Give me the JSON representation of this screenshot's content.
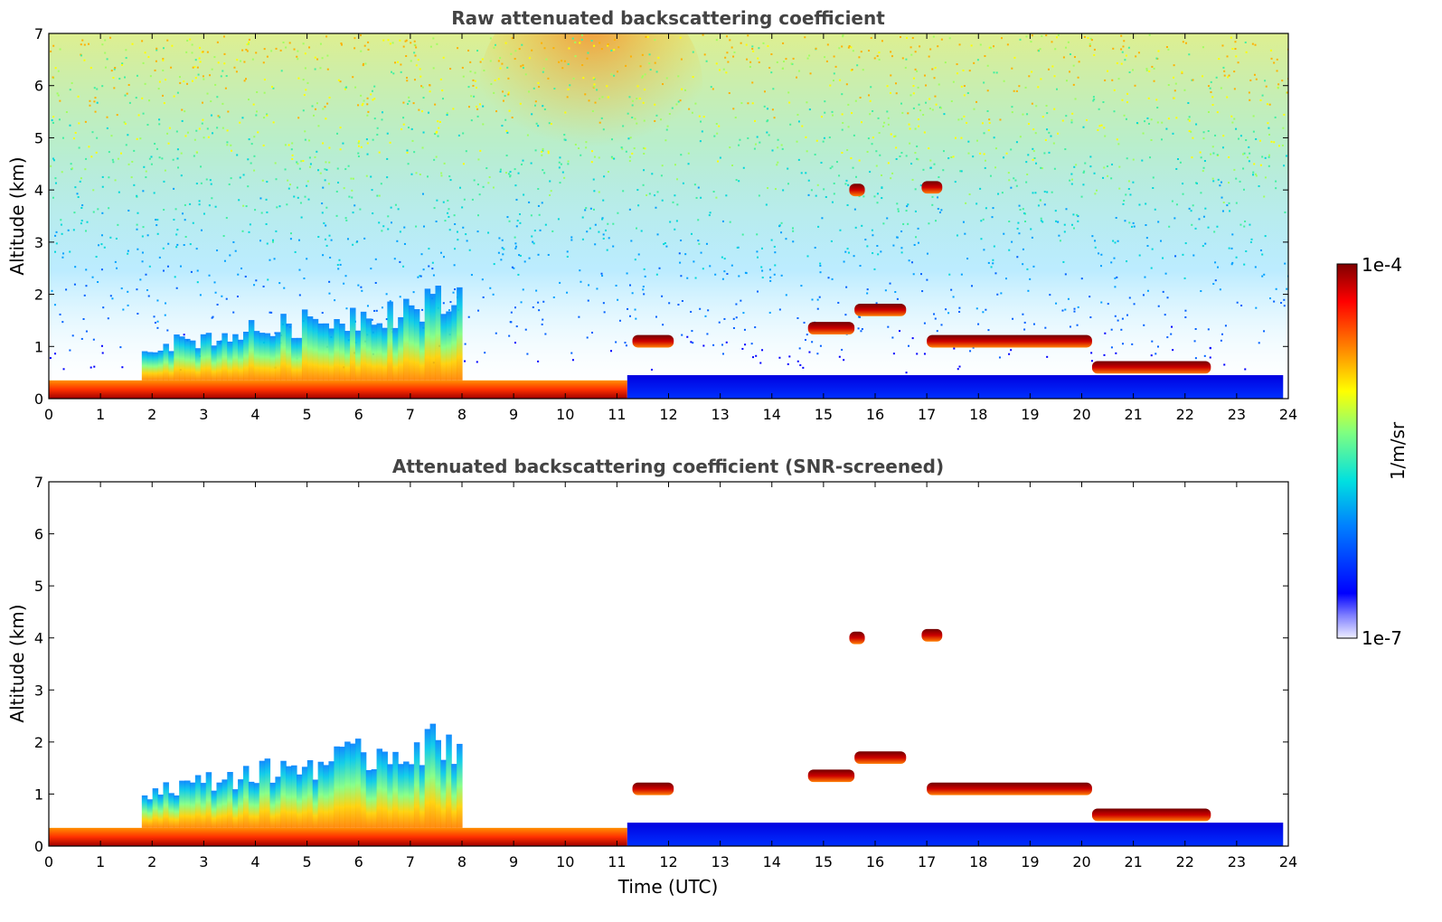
{
  "chart_data": [
    {
      "type": "heatmap",
      "title": "Raw attenuated backscattering coefficient",
      "xlabel": "",
      "ylabel": "Altitude (km)",
      "xlim": [
        0,
        24
      ],
      "ylim": [
        0,
        7
      ],
      "x_ticks": [
        "0",
        "1",
        "2",
        "3",
        "4",
        "5",
        "6",
        "7",
        "8",
        "9",
        "10",
        "11",
        "12",
        "13",
        "14",
        "15",
        "16",
        "17",
        "18",
        "19",
        "20",
        "21",
        "22",
        "23",
        "24"
      ],
      "y_ticks": [
        "0",
        "1",
        "2",
        "3",
        "4",
        "5",
        "6",
        "7"
      ],
      "noise_fill": true,
      "features": [
        {
          "kind": "surface_layer",
          "t_start": 0,
          "t_end": 11.2,
          "top_km": 0.35,
          "value": "high"
        },
        {
          "kind": "plumes",
          "t_start": 1.8,
          "t_end": 8.0,
          "top_km": 2.3,
          "value": "medium"
        },
        {
          "kind": "boundary_layer",
          "t_start": 11.2,
          "t_end": 23.9,
          "top_km": 0.45,
          "value": "low"
        },
        {
          "kind": "cloud",
          "t_start": 15.5,
          "t_end": 15.8,
          "alt_km": 4.0,
          "value": "very_high"
        },
        {
          "kind": "cloud",
          "t_start": 16.9,
          "t_end": 17.3,
          "alt_km": 4.05,
          "value": "very_high"
        },
        {
          "kind": "cloud",
          "t_start": 14.7,
          "t_end": 15.6,
          "alt_km": 1.35,
          "value": "very_high"
        },
        {
          "kind": "cloud",
          "t_start": 15.6,
          "t_end": 16.6,
          "alt_km": 1.7,
          "value": "very_high"
        },
        {
          "kind": "cloud",
          "t_start": 11.3,
          "t_end": 12.1,
          "alt_km": 1.1,
          "value": "very_high"
        },
        {
          "kind": "cloud",
          "t_start": 17.0,
          "t_end": 20.2,
          "alt_km": 1.1,
          "value": "very_high"
        },
        {
          "kind": "cloud",
          "t_start": 20.2,
          "t_end": 22.5,
          "alt_km": 0.6,
          "value": "very_high"
        }
      ]
    },
    {
      "type": "heatmap",
      "title": "Attenuated backscattering coefficient (SNR-screened)",
      "xlabel": "Time (UTC)",
      "ylabel": "Altitude (km)",
      "xlim": [
        0,
        24
      ],
      "ylim": [
        0,
        7
      ],
      "x_ticks": [
        "0",
        "1",
        "2",
        "3",
        "4",
        "5",
        "6",
        "7",
        "8",
        "9",
        "10",
        "11",
        "12",
        "13",
        "14",
        "15",
        "16",
        "17",
        "18",
        "19",
        "20",
        "21",
        "22",
        "23",
        "24"
      ],
      "y_ticks": [
        "0",
        "1",
        "2",
        "3",
        "4",
        "5",
        "6",
        "7"
      ],
      "noise_fill": false,
      "features": [
        {
          "kind": "surface_layer",
          "t_start": 0,
          "t_end": 11.2,
          "top_km": 0.35,
          "value": "high"
        },
        {
          "kind": "plumes",
          "t_start": 1.8,
          "t_end": 8.0,
          "top_km": 2.5,
          "value": "medium"
        },
        {
          "kind": "boundary_layer",
          "t_start": 11.2,
          "t_end": 23.9,
          "top_km": 0.45,
          "value": "low"
        },
        {
          "kind": "cloud",
          "t_start": 15.5,
          "t_end": 15.8,
          "alt_km": 4.0,
          "value": "very_high"
        },
        {
          "kind": "cloud",
          "t_start": 16.9,
          "t_end": 17.3,
          "alt_km": 4.05,
          "value": "very_high"
        },
        {
          "kind": "cloud",
          "t_start": 14.7,
          "t_end": 15.6,
          "alt_km": 1.35,
          "value": "very_high"
        },
        {
          "kind": "cloud",
          "t_start": 15.6,
          "t_end": 16.6,
          "alt_km": 1.7,
          "value": "very_high"
        },
        {
          "kind": "cloud",
          "t_start": 11.3,
          "t_end": 12.1,
          "alt_km": 1.1,
          "value": "very_high"
        },
        {
          "kind": "cloud",
          "t_start": 17.0,
          "t_end": 20.2,
          "alt_km": 1.1,
          "value": "very_high"
        },
        {
          "kind": "cloud",
          "t_start": 20.2,
          "t_end": 22.5,
          "alt_km": 0.6,
          "value": "very_high"
        }
      ]
    }
  ],
  "colorbar": {
    "label": "1/m/sr",
    "max_label": "1e-4",
    "min_label": "1e-7",
    "colormap": "jet",
    "scale": "log",
    "colors": [
      "#eeeeff",
      "#0000ff",
      "#0080ff",
      "#00e0e0",
      "#80ff80",
      "#ffff00",
      "#ff8000",
      "#ff0000",
      "#800000"
    ]
  }
}
